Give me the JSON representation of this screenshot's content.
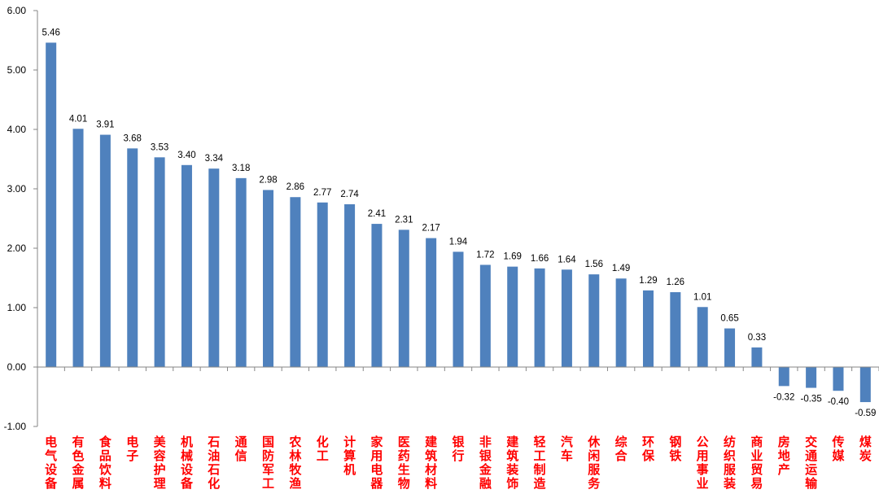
{
  "chart_data": {
    "type": "bar",
    "categories": [
      "电气设备",
      "有色金属",
      "食品饮料",
      "电子",
      "美容护理",
      "机械设备",
      "石油石化",
      "通信",
      "国防军工",
      "农林牧渔",
      "化工",
      "计算机",
      "家用电器",
      "医药生物",
      "建筑材料",
      "银行",
      "非银金融",
      "建筑装饰",
      "轻工制造",
      "汽车",
      "休闲服务",
      "综合",
      "环保",
      "钢铁",
      "公用事业",
      "纺织服装",
      "商业贸易",
      "房地产",
      "交通运输",
      "传媒",
      "煤炭"
    ],
    "values": [
      5.46,
      4.01,
      3.91,
      3.68,
      3.53,
      3.4,
      3.34,
      3.18,
      2.98,
      2.86,
      2.77,
      2.74,
      2.41,
      2.31,
      2.17,
      1.94,
      1.72,
      1.69,
      1.66,
      1.64,
      1.56,
      1.49,
      1.29,
      1.26,
      1.01,
      0.65,
      0.33,
      -0.32,
      -0.35,
      -0.4,
      -0.59
    ],
    "data_labels": [
      "5.46",
      "4.01",
      "3.91",
      "3.68",
      "3.53",
      "3.40",
      "3.34",
      "3.18",
      "2.98",
      "2.86",
      "2.77",
      "2.74",
      "2.41",
      "2.31",
      "2.17",
      "1.94",
      "1.72",
      "1.69",
      "1.66",
      "1.64",
      "1.56",
      "1.49",
      "1.29",
      "1.26",
      "1.01",
      "0.65",
      "0.33",
      "-0.32",
      "-0.35",
      "-0.40",
      "-0.59"
    ],
    "yticks": [
      "6.00",
      "5.00",
      "4.00",
      "3.00",
      "2.00",
      "1.00",
      "0.00",
      "-1.00"
    ],
    "ylim": [
      -1,
      6
    ],
    "grid": false,
    "colors": {
      "bar": "#4f81bd",
      "category_label": "#ff0000",
      "axis": "#868686"
    }
  }
}
